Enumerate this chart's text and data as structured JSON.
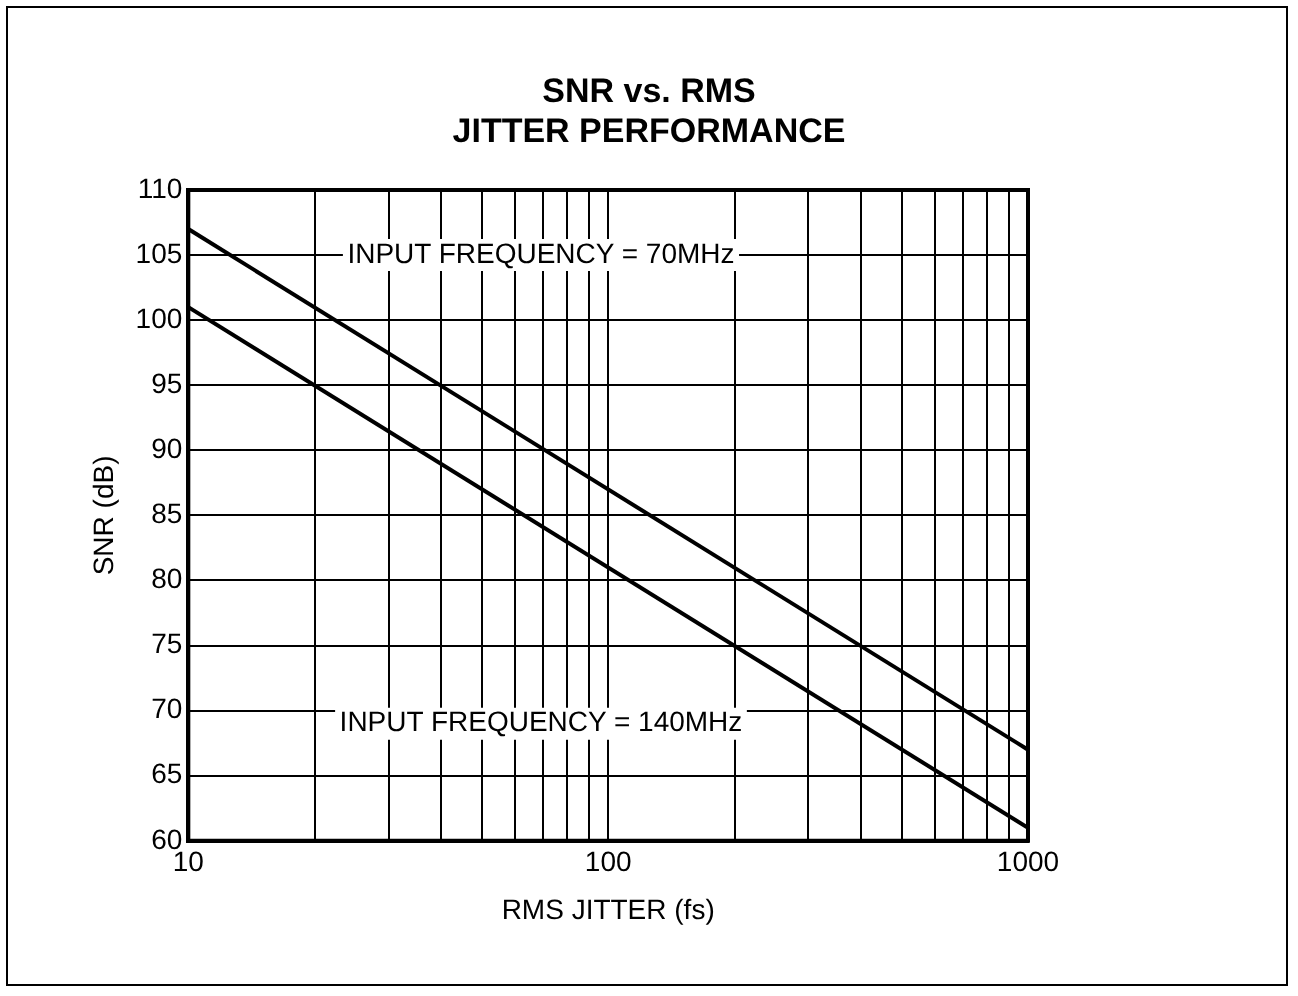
{
  "chart_data": {
    "type": "line",
    "title": "SNR vs. RMS\nJITTER PERFORMANCE",
    "xlabel": "RMS JITTER (fs)",
    "ylabel": "SNR (dB)",
    "x": [
      10,
      1000
    ],
    "series": [
      {
        "name": "INPUT FREQUENCY = 70MHz",
        "color": "#000000",
        "values": [
          107,
          67
        ]
      },
      {
        "name": "INPUT FREQUENCY = 140MHz",
        "color": "#000000",
        "values": [
          101,
          61
        ]
      }
    ],
    "log": "x",
    "xlim": [
      10,
      1000
    ],
    "xticks": [
      10,
      {
        "value": 20,
        "label": null
      },
      {
        "value": 30,
        "label": null
      },
      {
        "value": 40,
        "label": null
      },
      {
        "value": 50,
        "label": null
      },
      {
        "value": 60,
        "label": null
      },
      {
        "value": 70,
        "label": null
      },
      {
        "value": 80,
        "label": null
      },
      {
        "value": 90,
        "label": null
      },
      100,
      {
        "value": 200,
        "label": null
      },
      {
        "value": 300,
        "label": null
      },
      {
        "value": 400,
        "label": null
      },
      {
        "value": 500,
        "label": null
      },
      {
        "value": 600,
        "label": null
      },
      {
        "value": 700,
        "label": null
      },
      {
        "value": 800,
        "label": null
      },
      {
        "value": 900,
        "label": null
      },
      1000
    ],
    "ylim": [
      60,
      110
    ],
    "yticks": [
      60,
      65,
      70,
      75,
      80,
      85,
      90,
      95,
      100,
      105,
      110
    ],
    "grid": true,
    "legend": false,
    "marker": "none",
    "line_style": "solid"
  }
}
